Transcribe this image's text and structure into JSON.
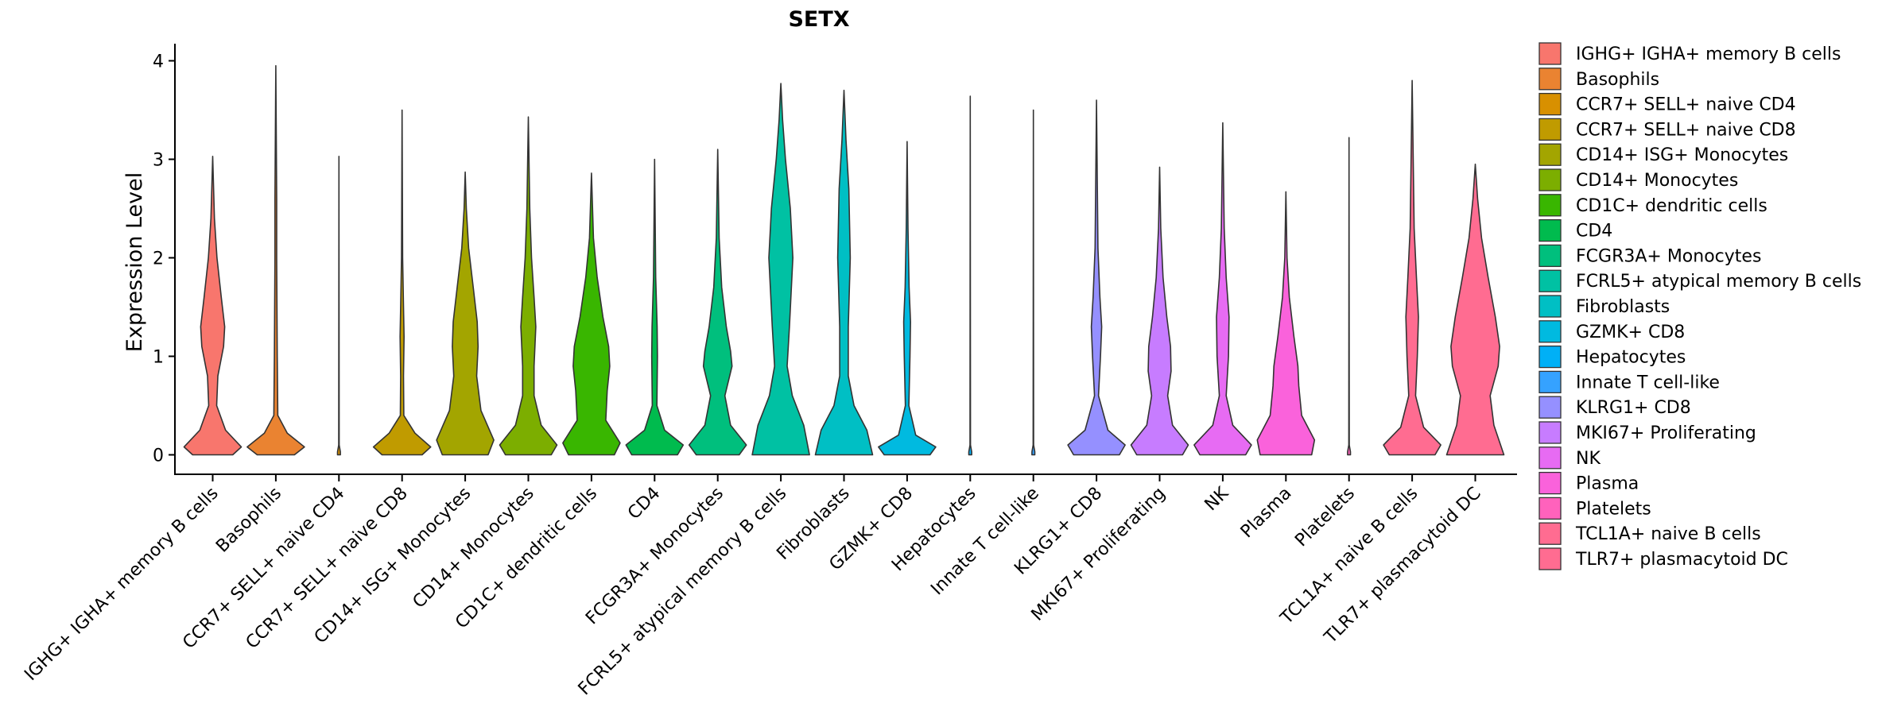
{
  "chart_data": {
    "type": "violin",
    "title": "SETX",
    "xlabel": "",
    "ylabel": "Expression Level",
    "ylim": [
      -0.18,
      4.25
    ],
    "yticks": [
      0,
      1,
      2,
      3,
      4
    ],
    "legend_position": "right",
    "categories": [
      "IGHG+ IGHA+ memory B cells",
      "Basophils",
      "CCR7+ SELL+ naive CD4",
      "CCR7+ SELL+ naive CD8",
      "CD14+ ISG+ Monocytes",
      "CD14+ Monocytes",
      "CD1C+ dendritic cells",
      "CD4",
      "FCGR3A+ Monocytes",
      "FCRL5+ atypical memory B cells",
      "Fibroblasts",
      "GZMK+ CD8",
      "Hepatocytes",
      "Innate T cell-like",
      "KLRG1+ CD8",
      "MKI67+ Proliferating",
      "NK",
      "Plasma",
      "Platelets",
      "TCL1A+ naive B cells",
      "TLR7+ plasmacytoid DC"
    ],
    "legend_labels": [
      " IGHG+ IGHA+ memory B cells",
      "Basophils",
      "CCR7+ SELL+ naive CD4",
      "CCR7+ SELL+ naive CD8",
      "CD14+ ISG+ Monocytes",
      "CD14+ Monocytes",
      "CD1C+ dendritic cells",
      "CD4",
      "FCGR3A+ Monocytes",
      "FCRL5+ atypical memory B cells",
      "Fibroblasts",
      "GZMK+ CD8",
      "Hepatocytes",
      "Innate T cell-like",
      "KLRG1+ CD8",
      "MKI67+ Proliferating",
      "NK",
      "Plasma",
      "Platelets",
      "TCL1A+ naive B cells",
      "TLR7+ plasmacytoid DC"
    ],
    "colors": [
      "#F8766D",
      "#EA8331",
      "#D89000",
      "#C09B00",
      "#A3A500",
      "#7CAE00",
      "#39B600",
      "#00BB4E",
      "#00BF7D",
      "#00C1A3",
      "#00BFC4",
      "#00BAE0",
      "#00B0F6",
      "#35A2FF",
      "#9590FF",
      "#C77CFF",
      "#E76BF3",
      "#FA62DB",
      "#FF62BC",
      "#FF6C91",
      "#FF6C91"
    ],
    "violins": [
      {
        "max": 3.03,
        "profile": [
          [
            0,
            0.7
          ],
          [
            0.08,
            1.0
          ],
          [
            0.25,
            0.45
          ],
          [
            0.5,
            0.14
          ],
          [
            0.8,
            0.18
          ],
          [
            1.1,
            0.38
          ],
          [
            1.3,
            0.42
          ],
          [
            1.6,
            0.3
          ],
          [
            2.0,
            0.15
          ],
          [
            2.4,
            0.06
          ],
          [
            3.03,
            0.0
          ]
        ]
      },
      {
        "max": 3.95,
        "profile": [
          [
            0,
            0.65
          ],
          [
            0.08,
            1.0
          ],
          [
            0.22,
            0.4
          ],
          [
            0.4,
            0.07
          ],
          [
            1.0,
            0.05
          ],
          [
            2.0,
            0.03
          ],
          [
            2.6,
            0.03
          ],
          [
            3.95,
            0.0
          ]
        ]
      },
      {
        "max": 3.03,
        "profile": [
          [
            0,
            0.05
          ],
          [
            0.03,
            0.05
          ],
          [
            0.1,
            0.008
          ],
          [
            3.03,
            0.0
          ]
        ]
      },
      {
        "max": 3.5,
        "profile": [
          [
            0,
            0.7
          ],
          [
            0.08,
            1.0
          ],
          [
            0.22,
            0.45
          ],
          [
            0.4,
            0.06
          ],
          [
            0.8,
            0.05
          ],
          [
            1.2,
            0.07
          ],
          [
            1.5,
            0.05
          ],
          [
            2.0,
            0.02
          ],
          [
            3.5,
            0.0
          ]
        ]
      },
      {
        "max": 2.87,
        "profile": [
          [
            0,
            0.8
          ],
          [
            0.15,
            1.0
          ],
          [
            0.45,
            0.55
          ],
          [
            0.8,
            0.4
          ],
          [
            1.1,
            0.45
          ],
          [
            1.35,
            0.42
          ],
          [
            1.7,
            0.28
          ],
          [
            2.1,
            0.12
          ],
          [
            2.5,
            0.04
          ],
          [
            2.87,
            0.0
          ]
        ]
      },
      {
        "max": 3.43,
        "profile": [
          [
            0,
            0.8
          ],
          [
            0.1,
            1.0
          ],
          [
            0.3,
            0.45
          ],
          [
            0.6,
            0.2
          ],
          [
            0.9,
            0.2
          ],
          [
            1.3,
            0.26
          ],
          [
            1.6,
            0.2
          ],
          [
            2.0,
            0.11
          ],
          [
            2.5,
            0.05
          ],
          [
            3.43,
            0.0
          ]
        ]
      },
      {
        "max": 2.86,
        "profile": [
          [
            0,
            0.8
          ],
          [
            0.12,
            1.0
          ],
          [
            0.35,
            0.5
          ],
          [
            0.65,
            0.55
          ],
          [
            0.9,
            0.64
          ],
          [
            1.1,
            0.6
          ],
          [
            1.4,
            0.4
          ],
          [
            1.8,
            0.2
          ],
          [
            2.2,
            0.07
          ],
          [
            2.86,
            0.0
          ]
        ]
      },
      {
        "max": 3.0,
        "profile": [
          [
            0,
            0.8
          ],
          [
            0.1,
            1.0
          ],
          [
            0.25,
            0.35
          ],
          [
            0.5,
            0.08
          ],
          [
            1.0,
            0.1
          ],
          [
            1.3,
            0.09
          ],
          [
            1.8,
            0.04
          ],
          [
            3.0,
            0.0
          ]
        ]
      },
      {
        "max": 3.1,
        "profile": [
          [
            0,
            0.75
          ],
          [
            0.1,
            1.0
          ],
          [
            0.3,
            0.45
          ],
          [
            0.6,
            0.25
          ],
          [
            0.9,
            0.5
          ],
          [
            1.05,
            0.45
          ],
          [
            1.3,
            0.3
          ],
          [
            1.7,
            0.14
          ],
          [
            2.2,
            0.05
          ],
          [
            3.1,
            0.0
          ]
        ]
      },
      {
        "max": 3.77,
        "profile": [
          [
            0,
            1.0
          ],
          [
            0.3,
            0.8
          ],
          [
            0.6,
            0.4
          ],
          [
            0.9,
            0.22
          ],
          [
            1.3,
            0.3
          ],
          [
            2.0,
            0.42
          ],
          [
            2.5,
            0.33
          ],
          [
            3.0,
            0.16
          ],
          [
            3.4,
            0.06
          ],
          [
            3.77,
            0.0
          ]
        ]
      },
      {
        "max": 3.7,
        "profile": [
          [
            0,
            1.0
          ],
          [
            0.25,
            0.8
          ],
          [
            0.5,
            0.35
          ],
          [
            0.8,
            0.15
          ],
          [
            1.3,
            0.15
          ],
          [
            2.0,
            0.22
          ],
          [
            2.7,
            0.17
          ],
          [
            3.2,
            0.07
          ],
          [
            3.7,
            0.0
          ]
        ]
      },
      {
        "max": 3.18,
        "profile": [
          [
            0,
            0.8
          ],
          [
            0.08,
            1.0
          ],
          [
            0.2,
            0.3
          ],
          [
            0.5,
            0.06
          ],
          [
            1.0,
            0.1
          ],
          [
            1.35,
            0.12
          ],
          [
            1.7,
            0.07
          ],
          [
            2.3,
            0.03
          ],
          [
            3.18,
            0.0
          ]
        ]
      },
      {
        "max": 3.64,
        "profile": [
          [
            0,
            0.05
          ],
          [
            0.03,
            0.05
          ],
          [
            0.1,
            0.008
          ],
          [
            3.64,
            0.0
          ]
        ]
      },
      {
        "max": 3.5,
        "profile": [
          [
            0,
            0.05
          ],
          [
            0.03,
            0.05
          ],
          [
            0.1,
            0.008
          ],
          [
            3.5,
            0.0
          ]
        ]
      },
      {
        "max": 3.6,
        "profile": [
          [
            0,
            0.8
          ],
          [
            0.1,
            1.0
          ],
          [
            0.25,
            0.4
          ],
          [
            0.6,
            0.07
          ],
          [
            1.0,
            0.14
          ],
          [
            1.3,
            0.18
          ],
          [
            1.6,
            0.12
          ],
          [
            2.1,
            0.05
          ],
          [
            3.6,
            0.0
          ]
        ]
      },
      {
        "max": 2.92,
        "profile": [
          [
            0,
            0.8
          ],
          [
            0.1,
            1.0
          ],
          [
            0.3,
            0.45
          ],
          [
            0.6,
            0.28
          ],
          [
            0.85,
            0.4
          ],
          [
            1.1,
            0.38
          ],
          [
            1.4,
            0.25
          ],
          [
            1.8,
            0.12
          ],
          [
            2.3,
            0.04
          ],
          [
            2.92,
            0.0
          ]
        ]
      },
      {
        "max": 3.37,
        "profile": [
          [
            0,
            0.8
          ],
          [
            0.1,
            1.0
          ],
          [
            0.3,
            0.35
          ],
          [
            0.6,
            0.12
          ],
          [
            1.0,
            0.2
          ],
          [
            1.4,
            0.22
          ],
          [
            1.8,
            0.12
          ],
          [
            2.3,
            0.05
          ],
          [
            3.37,
            0.0
          ]
        ]
      },
      {
        "max": 2.67,
        "profile": [
          [
            0,
            0.9
          ],
          [
            0.15,
            1.0
          ],
          [
            0.4,
            0.55
          ],
          [
            0.7,
            0.45
          ],
          [
            0.9,
            0.42
          ],
          [
            1.2,
            0.28
          ],
          [
            1.6,
            0.12
          ],
          [
            2.0,
            0.04
          ],
          [
            2.67,
            0.0
          ]
        ]
      },
      {
        "max": 3.22,
        "profile": [
          [
            0,
            0.05
          ],
          [
            0.03,
            0.05
          ],
          [
            0.1,
            0.008
          ],
          [
            3.22,
            0.0
          ]
        ]
      },
      {
        "max": 3.8,
        "profile": [
          [
            0,
            0.8
          ],
          [
            0.1,
            1.0
          ],
          [
            0.28,
            0.4
          ],
          [
            0.6,
            0.12
          ],
          [
            1.0,
            0.18
          ],
          [
            1.4,
            0.22
          ],
          [
            1.8,
            0.15
          ],
          [
            2.3,
            0.07
          ],
          [
            3.8,
            0.0
          ]
        ]
      },
      {
        "max": 2.95,
        "profile": [
          [
            0,
            1.0
          ],
          [
            0.3,
            0.65
          ],
          [
            0.6,
            0.52
          ],
          [
            0.9,
            0.8
          ],
          [
            1.1,
            0.85
          ],
          [
            1.4,
            0.7
          ],
          [
            1.8,
            0.45
          ],
          [
            2.2,
            0.22
          ],
          [
            2.6,
            0.08
          ],
          [
            2.95,
            0.0
          ]
        ]
      }
    ]
  }
}
